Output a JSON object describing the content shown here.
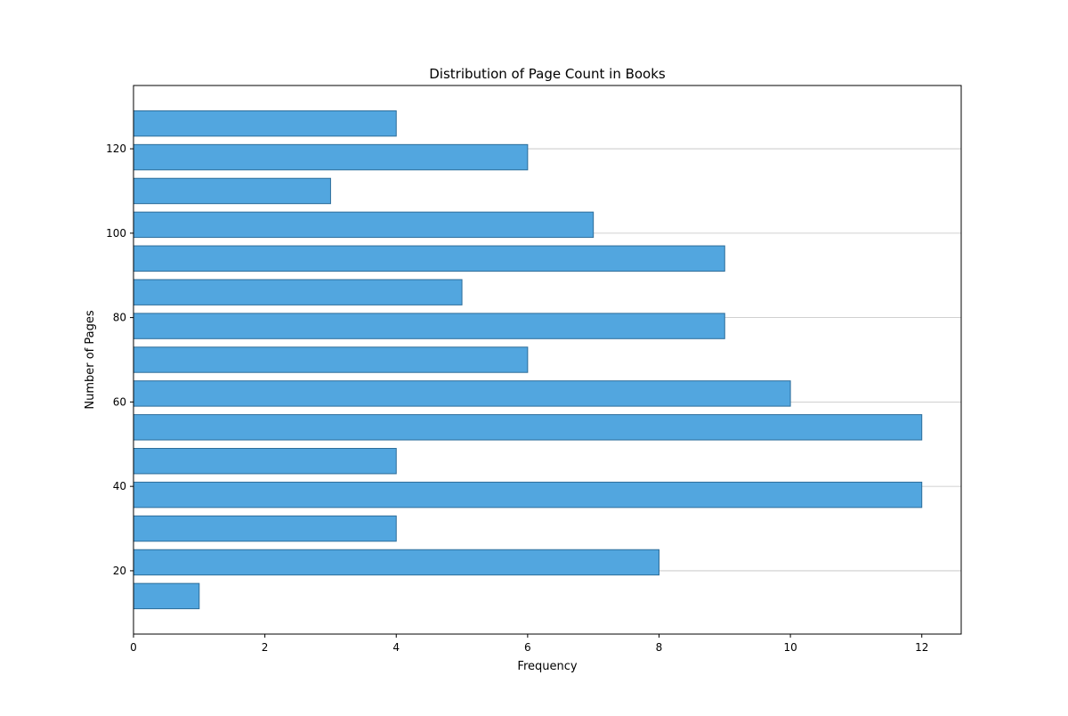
{
  "chart_data": {
    "type": "bar",
    "orientation": "horizontal",
    "title": "Distribution of Page Count in Books",
    "xlabel": "Frequency",
    "ylabel": "Number of Pages",
    "xlim": [
      0,
      12.6
    ],
    "ylim": [
      5,
      135
    ],
    "x_ticks": [
      0,
      2,
      4,
      6,
      8,
      10,
      12
    ],
    "y_ticks": [
      20,
      40,
      60,
      80,
      100,
      120
    ],
    "grid": {
      "x": false,
      "y": true
    },
    "bar_color": "#52a6df",
    "bar_edge_color": "#2d6d9a",
    "bins": [
      {
        "y": 14,
        "height": 6,
        "frequency": 1
      },
      {
        "y": 22,
        "height": 6,
        "frequency": 8
      },
      {
        "y": 30,
        "height": 6,
        "frequency": 4
      },
      {
        "y": 38,
        "height": 6,
        "frequency": 12
      },
      {
        "y": 46,
        "height": 6,
        "frequency": 4
      },
      {
        "y": 54,
        "height": 6,
        "frequency": 12
      },
      {
        "y": 62,
        "height": 6,
        "frequency": 10
      },
      {
        "y": 70,
        "height": 6,
        "frequency": 6
      },
      {
        "y": 78,
        "height": 6,
        "frequency": 9
      },
      {
        "y": 86,
        "height": 6,
        "frequency": 5
      },
      {
        "y": 94,
        "height": 6,
        "frequency": 9
      },
      {
        "y": 102,
        "height": 6,
        "frequency": 7
      },
      {
        "y": 110,
        "height": 6,
        "frequency": 3
      },
      {
        "y": 118,
        "height": 6,
        "frequency": 6
      },
      {
        "y": 126,
        "height": 6,
        "frequency": 4
      }
    ]
  }
}
